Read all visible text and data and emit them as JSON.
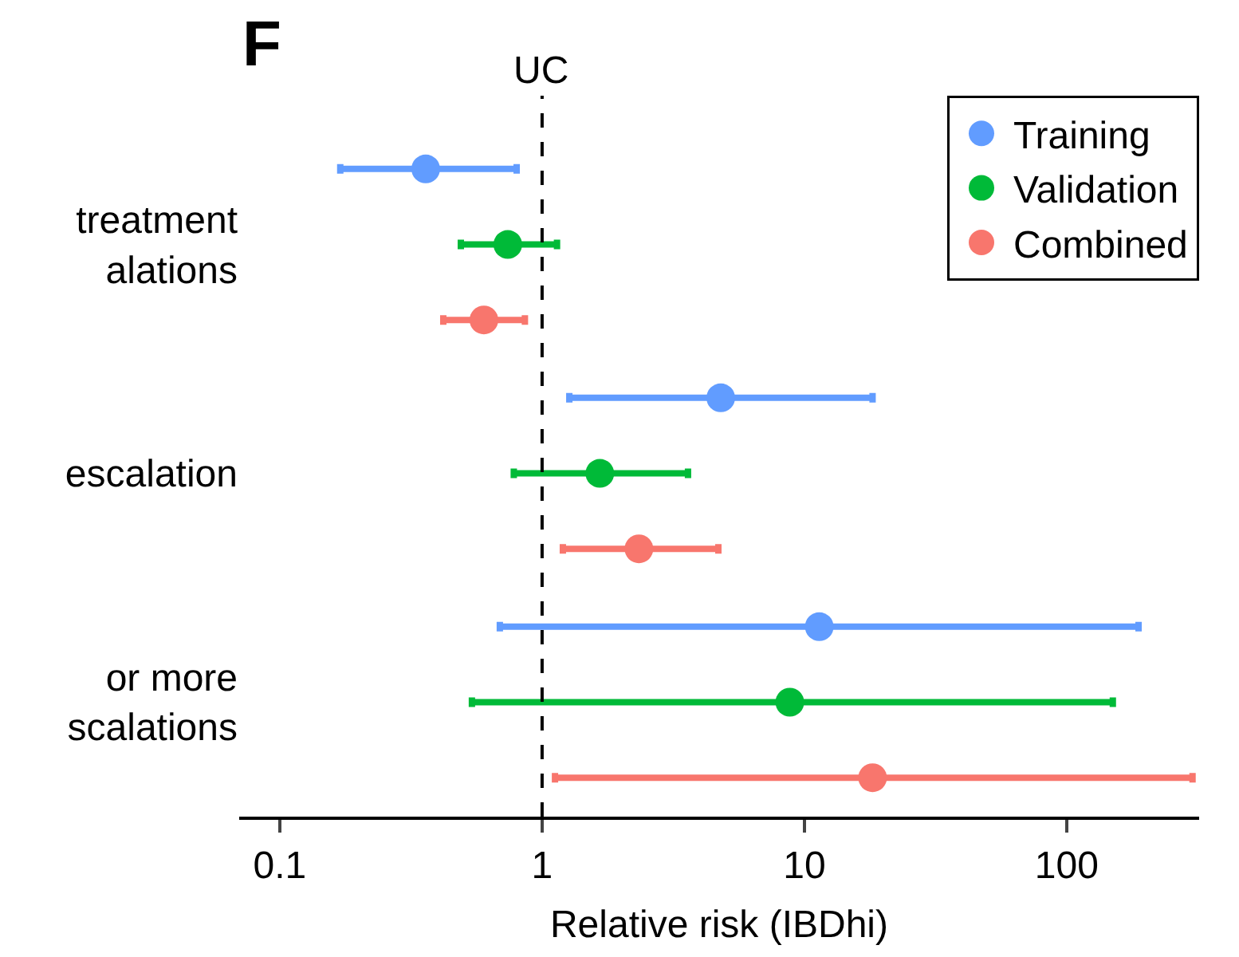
{
  "chart_data": {
    "type": "scatter",
    "orientation": "horizontal",
    "log": "x",
    "title": "F",
    "xlabel": "Relative risk (IBDhi)",
    "categories": [
      "treatment\nalations",
      "escalation",
      "or more\nscalations"
    ],
    "xlim": [
      0.07,
      320
    ],
    "xticks": [
      0.1,
      1,
      10,
      100
    ],
    "series": [
      {
        "name": "Training",
        "color": "#619cff",
        "values": [
          0.36,
          4.8,
          11.4
        ],
        "errors": [
          [
            0.17,
            0.8
          ],
          [
            1.27,
            18.2
          ],
          [
            0.69,
            188
          ]
        ]
      },
      {
        "name": "Validation",
        "color": "#00ba38",
        "values": [
          0.74,
          1.66,
          8.8
        ],
        "errors": [
          [
            0.49,
            1.14
          ],
          [
            0.78,
            3.6
          ],
          [
            0.54,
            150
          ]
        ]
      },
      {
        "name": "Combined",
        "color": "#f8766d",
        "values": [
          0.6,
          2.34,
          18.2
        ],
        "errors": [
          [
            0.42,
            0.86
          ],
          [
            1.2,
            4.7
          ],
          [
            1.12,
            302
          ]
        ]
      }
    ],
    "ref_lines": [
      {
        "axis": "x",
        "value": 1,
        "label": "UC",
        "color": "#000000",
        "line_style": "dashed"
      }
    ],
    "marker": "circle",
    "legend": "top right"
  }
}
